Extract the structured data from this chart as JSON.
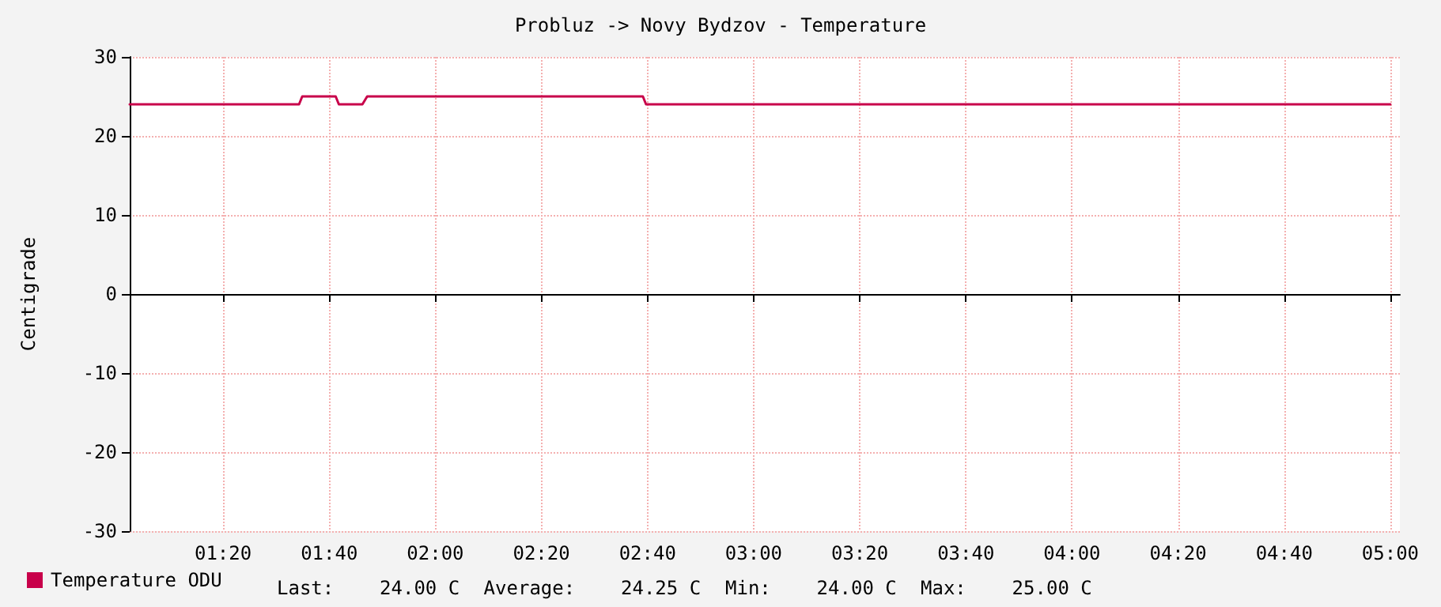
{
  "chart_data": {
    "type": "line",
    "title": "Probluz -> Novy Bydzov - Temperature",
    "ylabel": "Centigrade",
    "x": [
      1.04,
      1.572,
      1.582,
      1.687,
      1.697,
      1.771,
      1.786,
      2.652,
      2.662,
      5.0
    ],
    "series": [
      {
        "name": "Temperature ODU",
        "color": "#c8004a",
        "values": [
          24,
          24,
          25,
          25,
          24,
          24,
          25,
          25,
          24,
          24
        ]
      }
    ],
    "xlim": [
      1.04,
      5.03
    ],
    "xticks": [
      {
        "value": 1.3333,
        "label": "01:20"
      },
      {
        "value": 1.6667,
        "label": "01:40"
      },
      {
        "value": 2,
        "label": "02:00"
      },
      {
        "value": 2.3333,
        "label": "02:20"
      },
      {
        "value": 2.6667,
        "label": "02:40"
      },
      {
        "value": 3,
        "label": "03:00"
      },
      {
        "value": 3.3333,
        "label": "03:20"
      },
      {
        "value": 3.6667,
        "label": "03:40"
      },
      {
        "value": 4,
        "label": "04:00"
      },
      {
        "value": 4.3333,
        "label": "04:20"
      },
      {
        "value": 4.6667,
        "label": "04:40"
      },
      {
        "value": 5,
        "label": "05:00"
      }
    ],
    "ylim": [
      -30,
      30
    ],
    "yticks": [
      -30,
      -20,
      -10,
      0,
      10,
      20,
      30
    ],
    "grid": true,
    "legend": "bottom left",
    "marker": "none",
    "line_style": "solid",
    "annotations": [
      "Last:    24.00 C",
      "Average:    24.25 C",
      "Min:    24.00 C",
      "Max:    25.00 C"
    ]
  }
}
